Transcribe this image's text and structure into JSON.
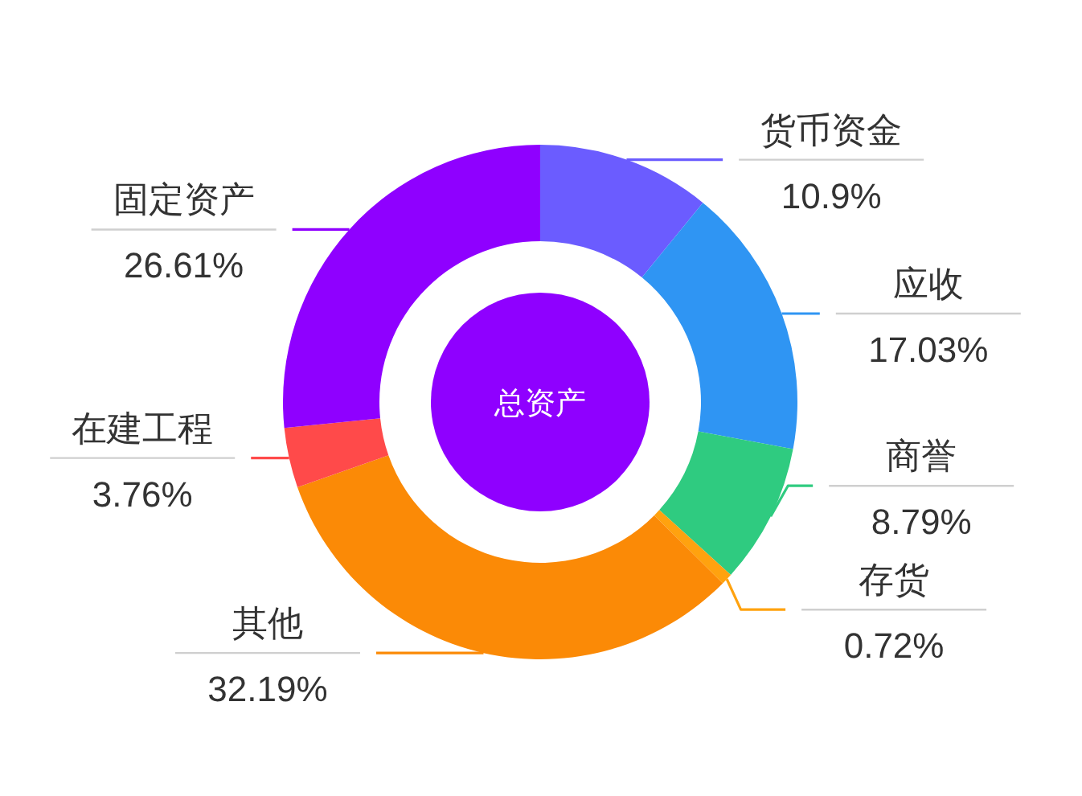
{
  "chart_data": {
    "type": "donut",
    "title": "总资产",
    "categories": [
      "货币资金",
      "应收",
      "商誉",
      "存货",
      "其他",
      "在建工程",
      "固定资产"
    ],
    "values": [
      10.9,
      17.03,
      8.79,
      0.72,
      32.19,
      3.76,
      26.61
    ],
    "colors": [
      "#6b5cff",
      "#2f95f3",
      "#2fcb80",
      "#ffa20f",
      "#fb8a06",
      "#ff4a4a",
      "#8f00ff"
    ],
    "value_labels": [
      "10.9%",
      "17.03%",
      "8.79%",
      "0.72%",
      "32.19%",
      "3.76%",
      "26.61%"
    ]
  }
}
